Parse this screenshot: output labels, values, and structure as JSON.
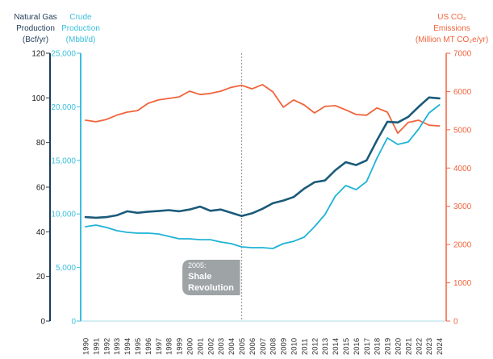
{
  "chart_data": {
    "type": "line",
    "title": "",
    "x": [
      1990,
      1991,
      1992,
      1993,
      1994,
      1995,
      1996,
      1997,
      1998,
      1999,
      2000,
      2001,
      2002,
      2003,
      2004,
      2005,
      2006,
      2007,
      2008,
      2009,
      2010,
      2011,
      2012,
      2013,
      2014,
      2015,
      2016,
      2017,
      2018,
      2019,
      2020,
      2021,
      2022,
      2023,
      2024
    ],
    "x_tick_labels": [
      "1990",
      "1991",
      "1992",
      "1993",
      "1994",
      "1995",
      "1996",
      "1997",
      "1998",
      "1999",
      "2000",
      "2001",
      "2002",
      "2003",
      "2004",
      "2005",
      "2006",
      "2007",
      "2008",
      "2009",
      "2010",
      "2011",
      "2012",
      "2013",
      "2014",
      "2015",
      "2016",
      "2017",
      "2018",
      "2019",
      "2020",
      "2021",
      "2022",
      "2023",
      "2024"
    ],
    "axes": {
      "gas": {
        "title_lines": [
          "Natural Gas",
          "Production",
          "(Bcf/yr)"
        ],
        "ylim": [
          0,
          120
        ],
        "ticks": [
          0,
          20,
          40,
          60,
          80,
          100,
          120
        ],
        "tick_labels": [
          "0",
          "20",
          "40",
          "60",
          "80",
          "100",
          "120"
        ],
        "color": "#1f3b57"
      },
      "crude": {
        "title_lines": [
          "Crude",
          "Production",
          "(Mbbl/d)"
        ],
        "ylim": [
          0,
          25000
        ],
        "ticks": [
          0,
          5000,
          10000,
          15000,
          20000,
          25000
        ],
        "tick_labels": [
          "0",
          "5,000",
          "10,000",
          "15,000",
          "20,000",
          "25,000"
        ],
        "color": "#3bbfdc"
      },
      "co2": {
        "title_lines": [
          "US CO₂",
          "Emissions",
          "(Million MT CO₂e/yr)"
        ],
        "ylim": [
          0,
          7000
        ],
        "ticks": [
          0,
          1000,
          2000,
          3000,
          4000,
          5000,
          6000,
          7000
        ],
        "tick_labels": [
          "0",
          "1000",
          "2000",
          "3000",
          "4000",
          "5000",
          "6000",
          "7000"
        ],
        "color": "#f0643c"
      }
    },
    "series": [
      {
        "name": "Natural Gas Production",
        "axis": "gas",
        "color": "#1b5a7a",
        "values": [
          46.6,
          46.3,
          46.6,
          47.4,
          49.2,
          48.5,
          49.0,
          49.3,
          49.7,
          49.2,
          50.0,
          51.3,
          49.4,
          50.0,
          48.5,
          47.1,
          48.3,
          50.3,
          52.8,
          54.0,
          55.6,
          59.3,
          62.2,
          63.0,
          67.6,
          71.2,
          69.9,
          72.0,
          81.0,
          89.3,
          89.0,
          91.5,
          96.0,
          100.2,
          99.8
        ]
      },
      {
        "name": "Crude Production",
        "axis": "crude",
        "color": "#1fb3d6",
        "values": [
          8810,
          8960,
          8740,
          8440,
          8280,
          8210,
          8210,
          8130,
          7910,
          7680,
          7680,
          7600,
          7600,
          7380,
          7230,
          6930,
          6850,
          6850,
          6780,
          7230,
          7450,
          7830,
          8810,
          9940,
          11670,
          12650,
          12270,
          13020,
          15210,
          17090,
          16490,
          16720,
          17920,
          19430,
          20180
        ]
      },
      {
        "name": "US CO2 Emissions",
        "axis": "co2",
        "color": "#f0643c",
        "values": [
          5250,
          5210,
          5270,
          5380,
          5460,
          5500,
          5690,
          5780,
          5820,
          5860,
          6010,
          5920,
          5950,
          6010,
          6110,
          6160,
          6070,
          6180,
          5990,
          5590,
          5780,
          5650,
          5440,
          5610,
          5630,
          5520,
          5400,
          5380,
          5570,
          5460,
          4910,
          5190,
          5250,
          5120,
          5100
        ]
      }
    ],
    "annotation": {
      "x": 2005,
      "line_style": "dotted",
      "line_color": "#999999",
      "label_year": "2005:",
      "label_lines": [
        "Shale",
        "Revolution"
      ],
      "box_color": "#9ea3a5"
    },
    "grid": false,
    "legend": "none"
  }
}
